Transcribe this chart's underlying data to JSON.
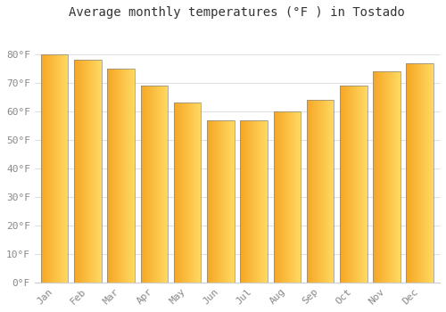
{
  "title": "Average monthly temperatures (°F ) in Tostado",
  "months": [
    "Jan",
    "Feb",
    "Mar",
    "Apr",
    "May",
    "Jun",
    "Jul",
    "Aug",
    "Sep",
    "Oct",
    "Nov",
    "Dec"
  ],
  "values": [
    80,
    78,
    75,
    69,
    63,
    57,
    57,
    60,
    64,
    69,
    74,
    77
  ],
  "bar_color_left": "#F5A623",
  "bar_color_right": "#FFD060",
  "bar_outline": "#888888",
  "ylim": [
    0,
    90
  ],
  "yticks": [
    0,
    10,
    20,
    30,
    40,
    50,
    60,
    70,
    80
  ],
  "ytick_labels": [
    "0°F",
    "10°F",
    "20°F",
    "30°F",
    "40°F",
    "50°F",
    "60°F",
    "70°F",
    "80°F"
  ],
  "background_color": "#ffffff",
  "grid_color": "#e0e0e0",
  "title_fontsize": 10,
  "tick_fontsize": 8,
  "title_color": "#333333",
  "tick_color": "#888888"
}
